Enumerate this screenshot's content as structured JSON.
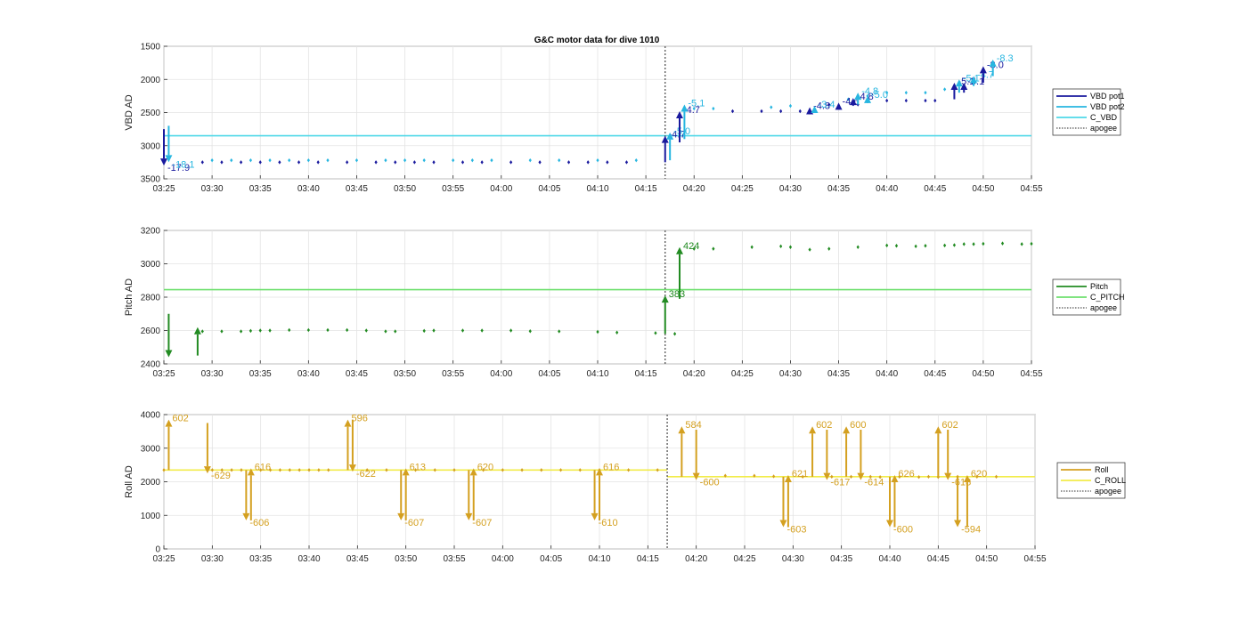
{
  "title": "G&C motor data for dive 1010",
  "colors": {
    "vbd_pot1": "#1a1a9e",
    "vbd_pot2": "#27b6e0",
    "c_vbd": "#4fd8e8",
    "pitch": "#228b22",
    "c_pitch": "#6ee06e",
    "roll": "#d4a020",
    "c_roll": "#f2ec4a",
    "apogee": "#555555"
  },
  "x_ticks": [
    "03:25",
    "03:30",
    "03:35",
    "03:40",
    "03:45",
    "03:50",
    "03:55",
    "04:00",
    "04:05",
    "04:10",
    "04:15",
    "04:20",
    "04:25",
    "04:30",
    "04:35",
    "04:40",
    "04:45",
    "04:50",
    "04:55"
  ],
  "chart_data": [
    {
      "type": "scatter",
      "title": "G&C motor data for dive 1010",
      "ylabel": "VBD AD",
      "ylim": [
        3500,
        1500
      ],
      "y_reversed": true,
      "y_ticks": [
        1500,
        2000,
        2500,
        3000,
        3500
      ],
      "xlim": [
        "03:25",
        "04:55"
      ],
      "grid": true,
      "legend": {
        "position": "right",
        "entries": [
          {
            "label": "VBD pot1",
            "style": "solid",
            "color_key": "vbd_pot1"
          },
          {
            "label": "VBD pot2",
            "style": "solid",
            "color_key": "vbd_pot2"
          },
          {
            "label": "C_VBD",
            "style": "solid",
            "color_key": "c_vbd"
          },
          {
            "label": "apogee",
            "style": "dotted",
            "color_key": "apogee"
          }
        ]
      },
      "apogee": "04:17",
      "reference_lines": [
        {
          "name": "C_VBD",
          "y": 2850,
          "color_key": "c_vbd"
        }
      ],
      "series": [
        {
          "name": "VBD pot1",
          "color_key": "vbd_pot1",
          "x": [
            "03:29",
            "03:31",
            "03:33",
            "03:35",
            "03:37",
            "03:39",
            "03:41",
            "03:44",
            "03:47",
            "03:49",
            "03:51",
            "03:53",
            "03:56",
            "03:58",
            "04:01",
            "04:04",
            "04:07",
            "04:09",
            "04:11",
            "04:13",
            "04:24",
            "04:27",
            "04:29",
            "04:31",
            "04:34",
            "04:37",
            "04:40",
            "04:42",
            "04:44",
            "04:45"
          ],
          "y": [
            3250,
            3250,
            3250,
            3250,
            3250,
            3250,
            3250,
            3250,
            3250,
            3250,
            3250,
            3250,
            3250,
            3250,
            3250,
            3250,
            3250,
            3250,
            3250,
            3250,
            2480,
            2480,
            2480,
            2480,
            2380,
            2380,
            2320,
            2320,
            2320,
            2320
          ]
        },
        {
          "name": "VBD pot2",
          "color_key": "vbd_pot2",
          "x": [
            "03:30",
            "03:32",
            "03:34",
            "03:36",
            "03:38",
            "03:40",
            "03:42",
            "03:45",
            "03:48",
            "03:50",
            "03:52",
            "03:55",
            "03:57",
            "03:59",
            "04:03",
            "04:06",
            "04:10",
            "04:14",
            "04:20",
            "04:22",
            "04:28",
            "04:30",
            "04:36",
            "04:38",
            "04:40",
            "04:42",
            "04:44",
            "04:46",
            "04:48"
          ],
          "y": [
            3220,
            3220,
            3220,
            3220,
            3220,
            3220,
            3220,
            3220,
            3220,
            3220,
            3220,
            3220,
            3220,
            3220,
            3220,
            3220,
            3220,
            3220,
            2440,
            2440,
            2420,
            2400,
            2300,
            2250,
            2200,
            2200,
            2200,
            2150,
            2100
          ]
        }
      ],
      "arrows": [
        {
          "series": "VBD pot1",
          "x": "03:25",
          "from": 2750,
          "to": 3300,
          "label": "-17.9"
        },
        {
          "series": "VBD pot2",
          "x": "03:25.5",
          "from": 2700,
          "to": 3250,
          "label": "-18.1"
        },
        {
          "series": "VBD pot1",
          "x": "04:17",
          "from": 3250,
          "to": 2850,
          "label": "-4.7"
        },
        {
          "series": "VBD pot2",
          "x": "04:17.5",
          "from": 3220,
          "to": 2800,
          "label": "-5.0"
        },
        {
          "series": "VBD pot1",
          "x": "04:18.5",
          "from": 2950,
          "to": 2480,
          "label": "-4.7"
        },
        {
          "series": "VBD pot2",
          "x": "04:19",
          "from": 2900,
          "to": 2380,
          "label": "-5.1"
        },
        {
          "series": "VBD pot1",
          "x": "04:32",
          "from": 2480,
          "to": 2420,
          "label": "-4.8"
        },
        {
          "series": "VBD pot2",
          "x": "04:32.5",
          "from": 2500,
          "to": 2400,
          "label": "-3.4"
        },
        {
          "series": "VBD pot1",
          "x": "04:35",
          "from": 2450,
          "to": 2350,
          "label": "-4.6"
        },
        {
          "series": "VBD pot1",
          "x": "04:36.5",
          "from": 2400,
          "to": 2280,
          "label": "-4.8"
        },
        {
          "series": "VBD pot2",
          "x": "04:37",
          "from": 2380,
          "to": 2200,
          "label": "-4.8"
        },
        {
          "series": "VBD pot2",
          "x": "04:38",
          "from": 2330,
          "to": 2250,
          "label": "-5.0"
        },
        {
          "series": "VBD pot1",
          "x": "04:47",
          "from": 2300,
          "to": 2050,
          "label": "-5.1"
        },
        {
          "series": "VBD pot2",
          "x": "04:47.5",
          "from": 2200,
          "to": 2000,
          "label": "-5.1"
        },
        {
          "series": "VBD pot1",
          "x": "04:48",
          "from": 2200,
          "to": 2050,
          "label": "-5.1"
        },
        {
          "series": "VBD pot2",
          "x": "04:49",
          "from": 2100,
          "to": 1950,
          "label": "-4.7"
        },
        {
          "series": "VBD pot1",
          "x": "04:50",
          "from": 2050,
          "to": 1800,
          "label": "-8.0"
        },
        {
          "series": "VBD pot2",
          "x": "04:51",
          "from": 1950,
          "to": 1700,
          "label": "-8.3"
        }
      ]
    },
    {
      "type": "scatter",
      "ylabel": "Pitch AD",
      "ylim": [
        2400,
        3200
      ],
      "y_ticks": [
        2400,
        2600,
        2800,
        3000,
        3200
      ],
      "xlim": [
        "03:25",
        "04:55"
      ],
      "grid": true,
      "legend": {
        "position": "right",
        "entries": [
          {
            "label": "Pitch",
            "style": "solid",
            "color_key": "pitch"
          },
          {
            "label": "C_PITCH",
            "style": "solid",
            "color_key": "c_pitch"
          },
          {
            "label": "apogee",
            "style": "dotted",
            "color_key": "apogee"
          }
        ]
      },
      "apogee": "04:17",
      "reference_lines": [
        {
          "name": "C_PITCH",
          "y": 2845,
          "color_key": "c_pitch"
        }
      ],
      "series": [
        {
          "name": "Pitch",
          "color_key": "pitch",
          "x": [
            "03:29",
            "03:31",
            "03:33",
            "03:34",
            "03:35",
            "03:36",
            "03:38",
            "03:40",
            "03:42",
            "03:44",
            "03:46",
            "03:48",
            "03:49",
            "03:52",
            "03:53",
            "03:56",
            "03:58",
            "04:01",
            "04:03",
            "04:06",
            "04:10",
            "04:12",
            "04:16",
            "04:18",
            "04:20",
            "04:22",
            "04:26",
            "04:29",
            "04:30",
            "04:32",
            "04:34",
            "04:37",
            "04:40",
            "04:41",
            "04:43",
            "04:44",
            "04:46",
            "04:47",
            "04:48",
            "04:49",
            "04:50",
            "04:52",
            "04:54",
            "04:55"
          ],
          "y": [
            2595,
            2595,
            2595,
            2598,
            2600,
            2600,
            2603,
            2603,
            2603,
            2603,
            2600,
            2595,
            2595,
            2598,
            2600,
            2600,
            2600,
            2600,
            2596,
            2595,
            2592,
            2588,
            2585,
            2580,
            3090,
            3090,
            3100,
            3105,
            3100,
            3085,
            3090,
            3100,
            3110,
            3108,
            3105,
            3108,
            3110,
            3112,
            3118,
            3118,
            3120,
            3122,
            3118,
            3120
          ]
        }
      ],
      "arrows": [
        {
          "series": "Pitch",
          "x": "03:25.5",
          "from": 2700,
          "to": 2440,
          "label": ""
        },
        {
          "series": "Pitch",
          "x": "03:28.5",
          "from": 2450,
          "to": 2620,
          "label": ""
        },
        {
          "series": "Pitch",
          "x": "04:17",
          "from": 2580,
          "to": 2810,
          "label": "383"
        },
        {
          "series": "Pitch",
          "x": "04:18.5",
          "from": 2790,
          "to": 3100,
          "label": "424"
        }
      ]
    },
    {
      "type": "scatter",
      "ylabel": "Roll AD",
      "ylim": [
        0,
        4000
      ],
      "y_ticks": [
        0,
        1000,
        2000,
        3000,
        4000
      ],
      "xlim": [
        "03:25",
        "04:55"
      ],
      "grid": true,
      "legend": {
        "position": "right",
        "entries": [
          {
            "label": "Roll",
            "style": "solid",
            "color_key": "roll"
          },
          {
            "label": "C_ROLL",
            "style": "solid",
            "color_key": "c_roll"
          },
          {
            "label": "apogee",
            "style": "dotted",
            "color_key": "apogee"
          }
        ]
      },
      "apogee": "04:17",
      "reference_lines": [
        {
          "name": "C_ROLL",
          "y": 2350,
          "x_from": "03:25",
          "x_to": "04:17",
          "color_key": "c_roll"
        },
        {
          "name": "C_ROLL",
          "y": 2150,
          "x_from": "04:17",
          "x_to": "04:55",
          "color_key": "c_roll"
        }
      ],
      "series": [
        {
          "name": "Roll",
          "color_key": "roll",
          "x": [
            "03:25",
            "03:30",
            "03:31",
            "03:32",
            "03:33",
            "03:35",
            "03:36",
            "03:37",
            "03:38",
            "03:39",
            "03:40",
            "03:41",
            "03:42",
            "03:46",
            "03:48",
            "03:51",
            "03:53",
            "03:55",
            "03:58",
            "04:00",
            "04:02",
            "04:04",
            "04:06",
            "04:08",
            "04:10",
            "04:13",
            "04:16",
            "04:20",
            "04:23",
            "04:26",
            "04:28",
            "04:31",
            "04:34",
            "04:36",
            "04:38",
            "04:39",
            "04:41",
            "04:43",
            "04:44",
            "04:45",
            "04:47",
            "04:49",
            "04:51"
          ],
          "y": [
            2350,
            2350,
            2350,
            2350,
            2350,
            2350,
            2350,
            2350,
            2350,
            2350,
            2350,
            2350,
            2350,
            2350,
            2350,
            2350,
            2350,
            2350,
            2350,
            2350,
            2350,
            2350,
            2350,
            2350,
            2350,
            2350,
            2350,
            2180,
            2180,
            2180,
            2160,
            2150,
            2150,
            2150,
            2150,
            2140,
            2150,
            2140,
            2150,
            2140,
            2150,
            2150,
            2150
          ]
        }
      ],
      "arrows": [
        {
          "series": "Roll",
          "x": "03:25.5",
          "from": 2350,
          "to": 3850,
          "label": "602"
        },
        {
          "series": "Roll",
          "x": "03:29.5",
          "from": 3750,
          "to": 2250,
          "label": "-629"
        },
        {
          "series": "Roll",
          "x": "03:33.5",
          "from": 2350,
          "to": 850,
          "label": "-606"
        },
        {
          "series": "Roll",
          "x": "03:34",
          "from": 850,
          "to": 2400,
          "label": "616"
        },
        {
          "series": "Roll",
          "x": "03:44",
          "from": 2350,
          "to": 3850,
          "label": "596"
        },
        {
          "series": "Roll",
          "x": "03:44.5",
          "from": 3850,
          "to": 2300,
          "label": "-622"
        },
        {
          "series": "Roll",
          "x": "03:49.5",
          "from": 2350,
          "to": 850,
          "label": "-607"
        },
        {
          "series": "Roll",
          "x": "03:50",
          "from": 850,
          "to": 2400,
          "label": "613"
        },
        {
          "series": "Roll",
          "x": "03:56.5",
          "from": 2350,
          "to": 850,
          "label": "-607"
        },
        {
          "series": "Roll",
          "x": "03:57",
          "from": 850,
          "to": 2400,
          "label": "620"
        },
        {
          "series": "Roll",
          "x": "04:09.5",
          "from": 2350,
          "to": 850,
          "label": "-610"
        },
        {
          "series": "Roll",
          "x": "04:10",
          "from": 850,
          "to": 2400,
          "label": "616"
        },
        {
          "series": "Roll",
          "x": "04:18.5",
          "from": 2150,
          "to": 3650,
          "label": "584"
        },
        {
          "series": "Roll",
          "x": "04:20",
          "from": 3550,
          "to": 2050,
          "label": "-600"
        },
        {
          "series": "Roll",
          "x": "04:29",
          "from": 2150,
          "to": 650,
          "label": "-603"
        },
        {
          "series": "Roll",
          "x": "04:29.5",
          "from": 650,
          "to": 2200,
          "label": "621"
        },
        {
          "series": "Roll",
          "x": "04:32",
          "from": 2150,
          "to": 3650,
          "label": "602"
        },
        {
          "series": "Roll",
          "x": "04:33.5",
          "from": 3550,
          "to": 2050,
          "label": "-617"
        },
        {
          "series": "Roll",
          "x": "04:35.5",
          "from": 2150,
          "to": 3650,
          "label": "600"
        },
        {
          "series": "Roll",
          "x": "04:37",
          "from": 3550,
          "to": 2050,
          "label": "-614"
        },
        {
          "series": "Roll",
          "x": "04:40",
          "from": 2150,
          "to": 650,
          "label": "-600"
        },
        {
          "series": "Roll",
          "x": "04:40.5",
          "from": 650,
          "to": 2200,
          "label": "626"
        },
        {
          "series": "Roll",
          "x": "04:45",
          "from": 2150,
          "to": 3650,
          "label": "602"
        },
        {
          "series": "Roll",
          "x": "04:46",
          "from": 3550,
          "to": 2050,
          "label": "-618"
        },
        {
          "series": "Roll",
          "x": "04:47",
          "from": 2150,
          "to": 650,
          "label": "-594"
        },
        {
          "series": "Roll",
          "x": "04:48",
          "from": 650,
          "to": 2200,
          "label": "620"
        }
      ]
    }
  ]
}
